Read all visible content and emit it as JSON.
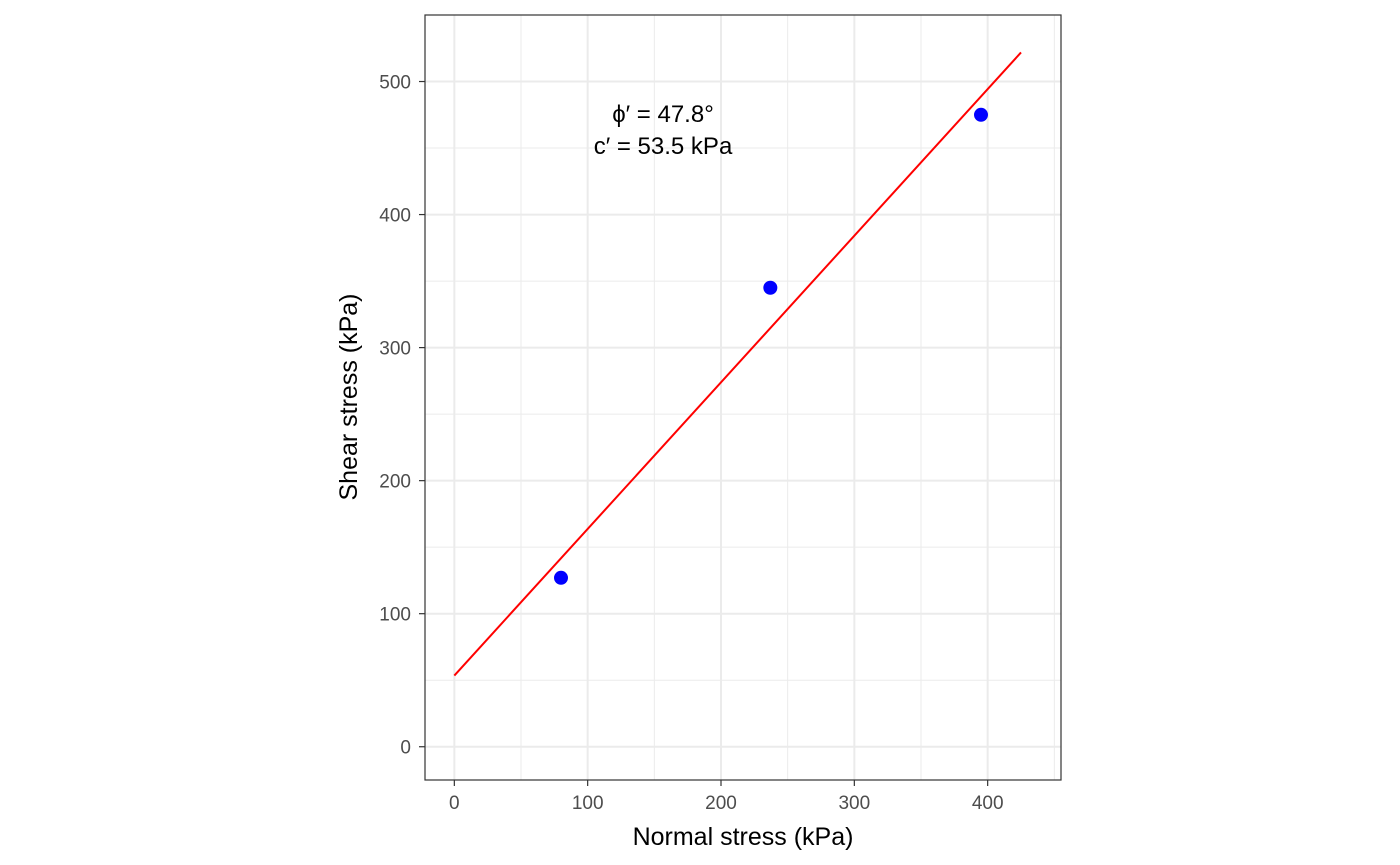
{
  "chart_data": {
    "type": "scatter",
    "xlabel": "Normal stress (kPa)",
    "ylabel": "Shear stress (kPa)",
    "xlim": [
      -22,
      455
    ],
    "ylim": [
      -25,
      550
    ],
    "x_ticks": [
      0,
      100,
      200,
      300,
      400
    ],
    "x_tick_labels": [
      "0",
      "100",
      "200",
      "300",
      "400"
    ],
    "y_ticks": [
      0,
      100,
      200,
      300,
      400,
      500
    ],
    "y_tick_labels": [
      "0",
      "100",
      "200",
      "300",
      "400",
      "500"
    ],
    "grid": true,
    "points": [
      {
        "x": 80,
        "y": 127
      },
      {
        "x": 237,
        "y": 345
      },
      {
        "x": 395,
        "y": 475
      }
    ],
    "fit_line": {
      "intercept": 53.5,
      "slope": 1.102,
      "x_range": [
        0,
        425
      ]
    },
    "annotations": [
      "ϕ′ = 47.8°",
      "c′ = 53.5 kPa"
    ],
    "colors": {
      "points": "#0000ff",
      "fit_line": "#ff0000",
      "grid": "#ebebeb",
      "panel_border": "#333333"
    }
  }
}
